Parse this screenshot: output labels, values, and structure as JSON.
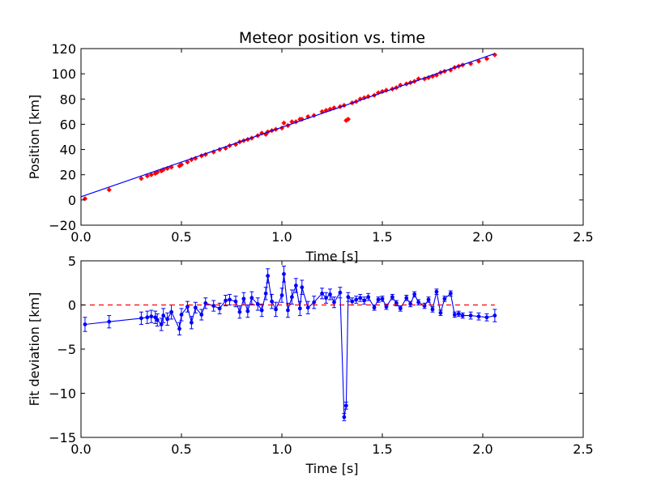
{
  "colors": {
    "background": "#ffffff",
    "observed": "#ff0000",
    "fit": "#0000ff",
    "zero_line": "#ff0000",
    "deviation": "#0000ff"
  },
  "chart_data": [
    {
      "type": "scatter",
      "title": "Meteor position vs. time",
      "xlabel": "Time [s]",
      "ylabel": "Position [km]",
      "xlim": [
        0.0,
        2.5
      ],
      "ylim": [
        -20,
        120
      ],
      "xticks": [
        "0.0",
        "0.5",
        "1.0",
        "1.5",
        "2.0",
        "2.5"
      ],
      "yticks": [
        "−20",
        "0",
        "20",
        "40",
        "60",
        "80",
        "100",
        "120"
      ],
      "grid": false,
      "series": [
        {
          "kind": "scatter-errorbar",
          "color": "#ff0000",
          "x": [
            0.02,
            0.14,
            0.3,
            0.33,
            0.35,
            0.37,
            0.38,
            0.4,
            0.41,
            0.43,
            0.45,
            0.49,
            0.5,
            0.53,
            0.55,
            0.57,
            0.6,
            0.62,
            0.66,
            0.69,
            0.72,
            0.74,
            0.77,
            0.79,
            0.81,
            0.83,
            0.85,
            0.88,
            0.9,
            0.92,
            0.93,
            0.95,
            0.97,
            1.0,
            1.01,
            1.03,
            1.05,
            1.07,
            1.09,
            1.1,
            1.13,
            1.16,
            1.2,
            1.22,
            1.24,
            1.26,
            1.29,
            1.31,
            1.32,
            1.33,
            1.35,
            1.37,
            1.39,
            1.41,
            1.43,
            1.46,
            1.48,
            1.5,
            1.52,
            1.55,
            1.57,
            1.59,
            1.62,
            1.64,
            1.66,
            1.68,
            1.71,
            1.73,
            1.75,
            1.77,
            1.79,
            1.81,
            1.84,
            1.86,
            1.88,
            1.9,
            1.94,
            1.98,
            2.02,
            2.06
          ],
          "y": [
            1,
            8,
            17,
            19,
            20,
            21,
            22,
            23,
            24,
            25,
            26,
            27,
            28,
            30,
            32,
            33,
            35,
            36,
            38,
            40,
            41,
            43,
            44,
            46,
            47,
            48,
            49,
            51,
            53,
            52,
            54,
            55,
            56,
            57,
            61,
            59,
            62,
            62,
            64,
            64,
            66,
            67,
            70,
            71,
            72,
            73,
            74,
            75,
            63,
            64,
            77,
            78,
            80,
            81,
            82,
            83,
            85,
            86,
            87,
            88,
            89,
            91,
            92,
            93,
            94,
            96,
            96,
            97,
            98,
            99,
            101,
            102,
            103,
            105,
            106,
            107,
            108,
            110,
            112,
            115
          ]
        },
        {
          "kind": "line",
          "color": "#0000ff",
          "x": [
            0.0,
            2.06
          ],
          "y": [
            2.5,
            116
          ]
        }
      ]
    },
    {
      "type": "line",
      "title": "",
      "xlabel": "Time [s]",
      "ylabel": "Fit deviation [km]",
      "xlim": [
        0.0,
        2.5
      ],
      "ylim": [
        -15,
        5
      ],
      "xticks": [
        "0.0",
        "0.5",
        "1.0",
        "1.5",
        "2.0",
        "2.5"
      ],
      "yticks": [
        "−15",
        "−10",
        "−5",
        "0",
        "5"
      ],
      "grid": false,
      "series": [
        {
          "kind": "line-errorbar",
          "color": "#0000ff",
          "x": [
            0.02,
            0.14,
            0.3,
            0.33,
            0.35,
            0.37,
            0.38,
            0.4,
            0.41,
            0.43,
            0.45,
            0.49,
            0.5,
            0.53,
            0.55,
            0.57,
            0.6,
            0.62,
            0.66,
            0.69,
            0.72,
            0.74,
            0.77,
            0.79,
            0.81,
            0.83,
            0.85,
            0.88,
            0.9,
            0.92,
            0.93,
            0.95,
            0.97,
            1.0,
            1.01,
            1.03,
            1.05,
            1.07,
            1.09,
            1.1,
            1.13,
            1.16,
            1.2,
            1.22,
            1.24,
            1.26,
            1.29,
            1.31,
            1.32,
            1.33,
            1.35,
            1.37,
            1.39,
            1.41,
            1.43,
            1.46,
            1.48,
            1.5,
            1.52,
            1.55,
            1.57,
            1.59,
            1.62,
            1.64,
            1.66,
            1.68,
            1.71,
            1.73,
            1.75,
            1.77,
            1.79,
            1.81,
            1.84,
            1.86,
            1.88,
            1.9,
            1.94,
            1.98,
            2.02,
            2.06
          ],
          "y": [
            -2.2,
            -1.9,
            -1.5,
            -1.4,
            -1.3,
            -1.4,
            -1.7,
            -2.2,
            -1.2,
            -1.6,
            -0.8,
            -2.7,
            -1.1,
            -0.2,
            -2.0,
            -0.3,
            -1.1,
            0.2,
            -0.1,
            -0.4,
            0.5,
            0.6,
            0.4,
            -0.8,
            0.7,
            -0.7,
            0.8,
            0.1,
            -0.6,
            1.3,
            3.3,
            0.4,
            -0.5,
            1.1,
            3.5,
            -0.6,
            0.9,
            2.2,
            -0.4,
            2.0,
            -0.3,
            0.3,
            1.3,
            0.8,
            1.2,
            0.3,
            1.4,
            -12.7,
            -11.4,
            0.9,
            0.4,
            0.6,
            0.8,
            0.5,
            0.9,
            -0.3,
            0.6,
            0.7,
            -0.2,
            0.9,
            0.2,
            -0.4,
            0.8,
            0.1,
            1.2,
            0.3,
            -0.1,
            0.6,
            -0.5,
            1.5,
            -0.9,
            0.7,
            1.3,
            -1.1,
            -1.0,
            -1.2,
            -1.2,
            -1.3,
            -1.4,
            -1.2
          ],
          "err": [
            0.8,
            0.7,
            0.7,
            0.7,
            0.7,
            0.7,
            0.7,
            0.7,
            0.8,
            0.7,
            0.8,
            0.7,
            0.7,
            0.6,
            0.7,
            0.6,
            0.6,
            0.6,
            0.6,
            0.6,
            0.6,
            0.6,
            0.6,
            0.7,
            0.7,
            0.7,
            0.7,
            0.7,
            0.7,
            0.7,
            0.8,
            0.8,
            0.8,
            0.8,
            0.9,
            0.8,
            0.8,
            0.8,
            0.8,
            0.8,
            0.7,
            0.7,
            0.6,
            0.6,
            0.6,
            0.6,
            0.6,
            0.4,
            0.4,
            0.5,
            0.4,
            0.4,
            0.4,
            0.4,
            0.4,
            0.3,
            0.3,
            0.3,
            0.3,
            0.3,
            0.3,
            0.3,
            0.3,
            0.3,
            0.3,
            0.3,
            0.3,
            0.3,
            0.3,
            0.3,
            0.3,
            0.3,
            0.3,
            0.3,
            0.3,
            0.3,
            0.4,
            0.4,
            0.4,
            0.7
          ]
        },
        {
          "kind": "dashed-line",
          "color": "#ff0000",
          "x": [
            0.0,
            2.06
          ],
          "y": [
            0,
            0
          ]
        }
      ]
    }
  ]
}
